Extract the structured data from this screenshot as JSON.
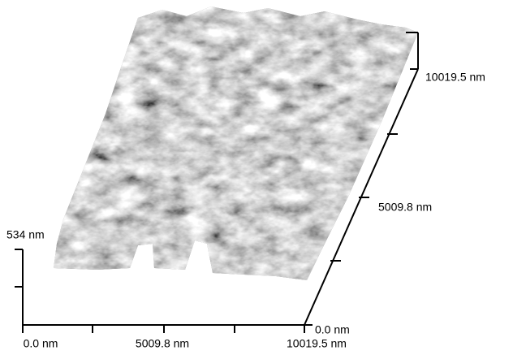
{
  "axes": {
    "x": {
      "labels": [
        "0.0 nm",
        "5009.8 nm",
        "10019.5 nm"
      ]
    },
    "y": {
      "labels": [
        "0.0 nm",
        "5009.8 nm",
        "10019.5 nm"
      ]
    },
    "z": {
      "labels": [
        "534 nm"
      ]
    }
  }
}
